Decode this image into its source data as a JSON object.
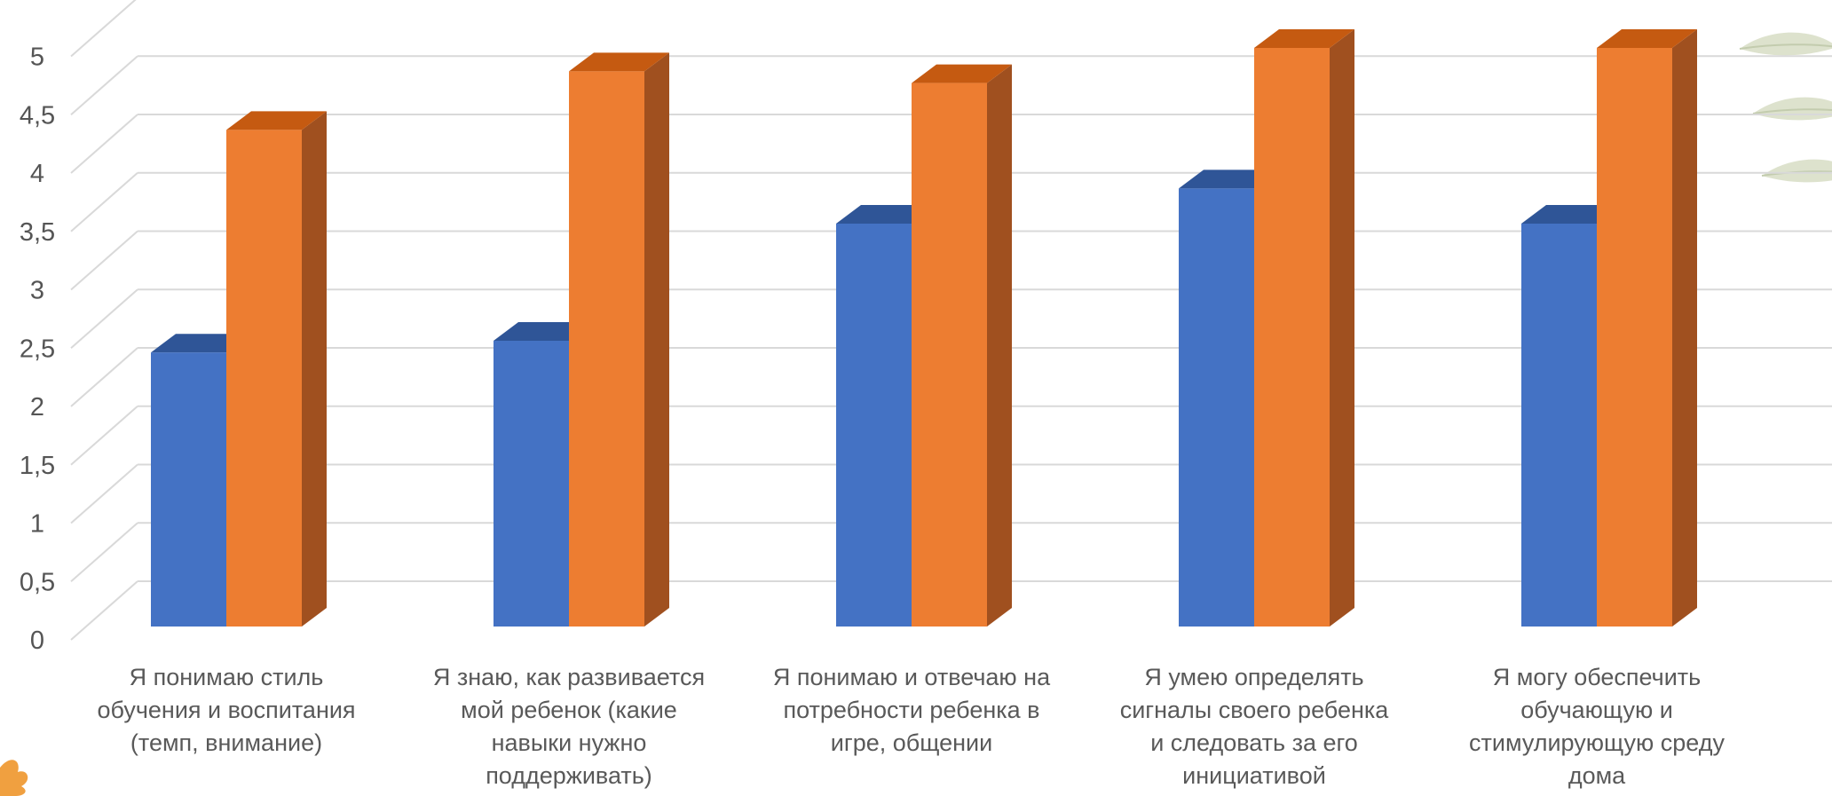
{
  "chart_data": {
    "type": "bar",
    "style": "3d-clustered-column",
    "categories": [
      [
        "Я понимаю стиль",
        "обучения и воспитания",
        "(темп, внимание)"
      ],
      [
        "Я знаю, как развивается",
        "мой ребенок (какие",
        "навыки нужно",
        "поддерживать)"
      ],
      [
        "Я понимаю и  отвечаю на",
        "потребности ребенка в",
        "игре, общении"
      ],
      [
        "Я умею определять",
        "сигналы своего ребенка",
        "и следовать за его",
        "инициативой"
      ],
      [
        "Я могу обеспечить",
        "обучающую и",
        "стимулирующую среду",
        "дома"
      ]
    ],
    "series": [
      {
        "values": [
          2.4,
          2.5,
          3.5,
          3.8,
          3.5
        ],
        "color": "#4472C4",
        "top_color": "#2F5597",
        "side_color": "#2F5597"
      },
      {
        "values": [
          4.3,
          4.8,
          4.7,
          5.0,
          5.0
        ],
        "color": "#ED7D31",
        "top_color": "#C55A11",
        "side_color": "#A0501F"
      }
    ],
    "ylim": [
      0,
      5.5
    ],
    "yticks": [
      "0",
      "0,5",
      "1",
      "1,5",
      "2",
      "2,5",
      "3",
      "3,5",
      "4",
      "4,5",
      "5"
    ],
    "grid": true,
    "legend": "none"
  },
  "decoration": {
    "leaf_color": "#D9DFC8",
    "leaf_color_dark": "#C3CCAE",
    "flower_color": "#F0A040"
  }
}
